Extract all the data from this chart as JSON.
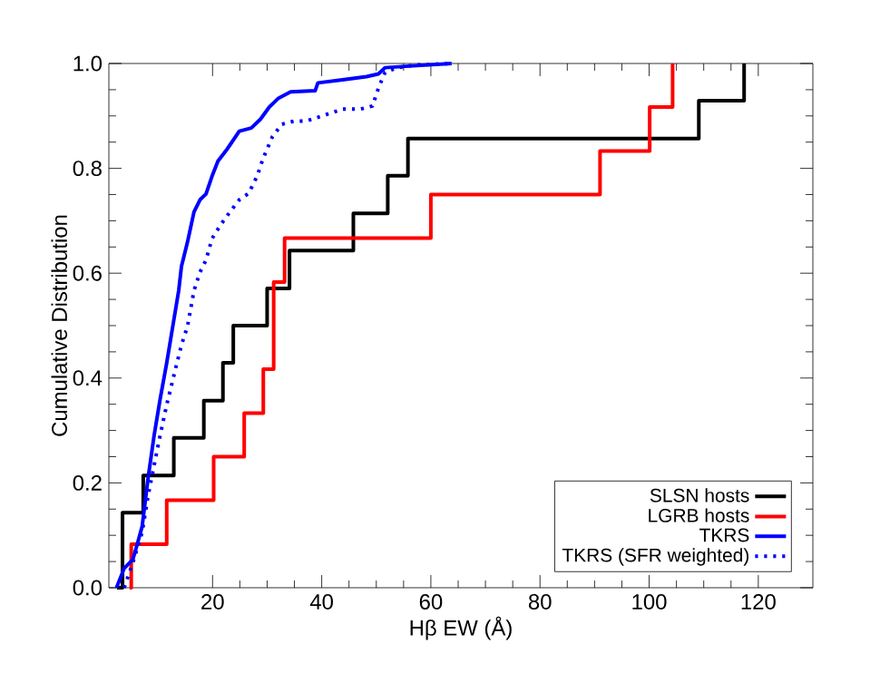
{
  "chart_data": {
    "type": "step",
    "xlabel": "Hβ EW (Å)",
    "ylabel": "Cumulative Distribution",
    "xlim": [
      1,
      130
    ],
    "ylim": [
      0,
      1
    ],
    "xticks": [
      20,
      40,
      60,
      80,
      100,
      120
    ],
    "yticks": [
      {
        "value": 0,
        "label": "0.0"
      },
      {
        "value": 0.2,
        "label": "0.2"
      },
      {
        "value": 0.4,
        "label": "0.4"
      },
      {
        "value": 0.6,
        "label": "0.6"
      },
      {
        "value": 0.8,
        "label": "0.8"
      },
      {
        "value": 1,
        "label": "1.0"
      }
    ],
    "grid": false,
    "legend": "bottom right",
    "series": [
      {
        "name": "SLSN hosts",
        "color": "#000000",
        "x": [
          2.5,
          3.5,
          7.3,
          12.9,
          18.4,
          21.9,
          23.8,
          30,
          34.1,
          45.8,
          52.1,
          55.8,
          109.1,
          117.4
        ],
        "values": [
          0,
          0.143,
          0.214,
          0.286,
          0.357,
          0.429,
          0.5,
          0.571,
          0.643,
          0.714,
          0.786,
          0.857,
          0.929,
          1.0
        ]
      },
      {
        "name": "LGRB hosts",
        "color": "#ff0000",
        "x": [
          4.8,
          5.1,
          11.6,
          20.2,
          25.8,
          29.3,
          31.2,
          33.2,
          60,
          91,
          100.1,
          104.3
        ],
        "values": [
          0,
          0.083,
          0.167,
          0.25,
          0.333,
          0.417,
          0.583,
          0.667,
          0.75,
          0.833,
          0.917,
          1.0
        ]
      },
      {
        "name": "TKRS",
        "color": "#0000ff",
        "type": "line",
        "line_style": "solid",
        "x": [
          2.4,
          3.8,
          5.4,
          6.2,
          7.1,
          8.2,
          9.3,
          10.4,
          11.6,
          12.7,
          13.8,
          14.3,
          15.4,
          16.6,
          17.7,
          18.8,
          19.9,
          21.0,
          22.7,
          24.9,
          27.1,
          28.8,
          30.4,
          32.1,
          34.3,
          38.8,
          39.3,
          43.8,
          48.2,
          50.4,
          51.6,
          56.0,
          63.8
        ],
        "values": [
          0,
          0.037,
          0.054,
          0.083,
          0.117,
          0.21,
          0.291,
          0.36,
          0.429,
          0.498,
          0.567,
          0.613,
          0.659,
          0.717,
          0.74,
          0.751,
          0.785,
          0.814,
          0.837,
          0.871,
          0.877,
          0.894,
          0.917,
          0.934,
          0.946,
          0.948,
          0.963,
          0.969,
          0.975,
          0.98,
          0.992,
          0.995,
          1.0
        ]
      },
      {
        "name": "TKRS (SFR weighted)",
        "color": "#0000ff",
        "type": "line",
        "line_style": "dotted",
        "x": [
          3.8,
          5.4,
          7.1,
          8.2,
          9.3,
          10.4,
          11.6,
          13.2,
          14.3,
          15.4,
          16.6,
          17.7,
          18.8,
          19.9,
          21.6,
          23.2,
          24.9,
          26.6,
          28.2,
          29.3,
          31.0,
          32.7,
          34.9,
          37.1,
          40.4,
          43.8,
          47.1,
          49.3,
          50.4,
          51.6,
          53.8,
          57.1,
          63.8
        ],
        "values": [
          0,
          0.048,
          0.106,
          0.176,
          0.234,
          0.291,
          0.349,
          0.417,
          0.463,
          0.498,
          0.567,
          0.602,
          0.625,
          0.666,
          0.694,
          0.717,
          0.74,
          0.752,
          0.786,
          0.82,
          0.861,
          0.884,
          0.89,
          0.89,
          0.901,
          0.913,
          0.913,
          0.919,
          0.953,
          0.983,
          0.992,
          0.997,
          1.0
        ]
      }
    ]
  }
}
